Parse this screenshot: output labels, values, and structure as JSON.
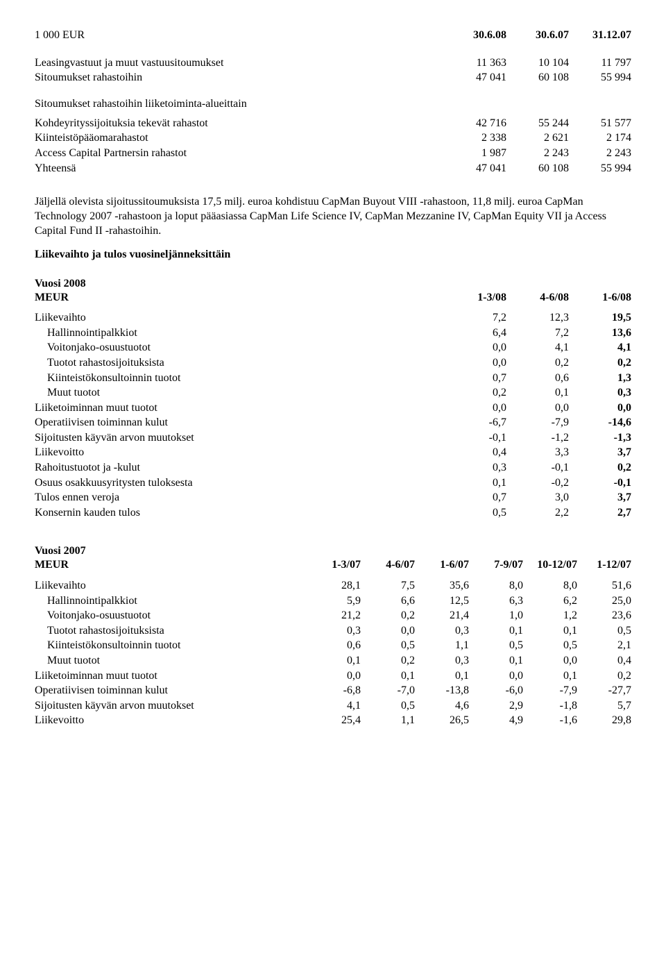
{
  "header": {
    "label": "1 000 EUR",
    "cols": [
      "30.6.08",
      "30.6.07",
      "31.12.07"
    ]
  },
  "leasing": {
    "rows": [
      {
        "label": "Leasingvastuut ja muut vastuusitoumukset",
        "vals": [
          "11 363",
          "10 104",
          "11 797"
        ]
      },
      {
        "label": "Sitoumukset rahastoihin",
        "vals": [
          "47 041",
          "60 108",
          "55 994"
        ]
      }
    ]
  },
  "sitoumukset": {
    "heading": "Sitoumukset rahastoihin liiketoiminta-alueittain",
    "rows": [
      {
        "label": "Kohdeyrityssijoituksia tekevät rahastot",
        "vals": [
          "42 716",
          "55 244",
          "51 577"
        ]
      },
      {
        "label": "Kiinteistöpääomarahastot",
        "vals": [
          "2 338",
          "2 621",
          "2 174"
        ]
      },
      {
        "label": "Access Capital Partnersin rahastot",
        "vals": [
          "1 987",
          "2 243",
          "2 243"
        ]
      },
      {
        "label": "Yhteensä",
        "vals": [
          "47 041",
          "60 108",
          "55 994"
        ]
      }
    ]
  },
  "paragraph": "Jäljellä olevista sijoitussitoumuksista 17,5 milj. euroa kohdistuu CapMan Buyout VIII -rahastoon, 11,8 milj. euroa CapMan Technology 2007 -rahastoon ja loput pääasiassa CapMan Life Science IV, CapMan Mezzanine IV, CapMan Equity VII ja Access Capital Fund II -rahastoihin.",
  "quarterly": {
    "title": "Liikevaihto ja tulos vuosineljänneksittäin"
  },
  "y2008": {
    "title": "Vuosi 2008",
    "header_label": "MEUR",
    "cols": [
      "1-3/08",
      "4-6/08",
      "1-6/08"
    ],
    "rows": [
      {
        "label": "Liikevaihto",
        "indent": false,
        "bold3": true,
        "vals": [
          "7,2",
          "12,3",
          "19,5"
        ]
      },
      {
        "label": "Hallinnointipalkkiot",
        "indent": true,
        "bold3": true,
        "vals": [
          "6,4",
          "7,2",
          "13,6"
        ]
      },
      {
        "label": "Voitonjako-osuustuotot",
        "indent": true,
        "bold3": true,
        "vals": [
          "0,0",
          "4,1",
          "4,1"
        ]
      },
      {
        "label": "Tuotot rahastosijoituksista",
        "indent": true,
        "bold3": true,
        "vals": [
          "0,0",
          "0,2",
          "0,2"
        ]
      },
      {
        "label": "Kiinteistökonsultoinnin tuotot",
        "indent": true,
        "bold3": true,
        "vals": [
          "0,7",
          "0,6",
          "1,3"
        ]
      },
      {
        "label": "Muut tuotot",
        "indent": true,
        "bold3": true,
        "vals": [
          "0,2",
          "0,1",
          "0,3"
        ]
      },
      {
        "label": "Liiketoiminnan muut tuotot",
        "indent": false,
        "bold3": true,
        "vals": [
          "0,0",
          "0,0",
          "0,0"
        ]
      },
      {
        "label": "Operatiivisen toiminnan kulut",
        "indent": false,
        "bold3": true,
        "vals": [
          "-6,7",
          "-7,9",
          "-14,6"
        ]
      },
      {
        "label": "Sijoitusten käyvän arvon muutokset",
        "indent": false,
        "bold3": true,
        "vals": [
          "-0,1",
          "-1,2",
          "-1,3"
        ]
      },
      {
        "label": "Liikevoitto",
        "indent": false,
        "bold3": true,
        "vals": [
          "0,4",
          "3,3",
          "3,7"
        ]
      },
      {
        "label": "Rahoitustuotot ja -kulut",
        "indent": false,
        "bold3": true,
        "vals": [
          "0,3",
          "-0,1",
          "0,2"
        ]
      },
      {
        "label": "Osuus osakkuusyritysten tuloksesta",
        "indent": false,
        "bold3": true,
        "vals": [
          "0,1",
          "-0,2",
          "-0,1"
        ]
      },
      {
        "label": "Tulos ennen veroja",
        "indent": false,
        "bold3": true,
        "vals": [
          "0,7",
          "3,0",
          "3,7"
        ]
      },
      {
        "label": "Konsernin kauden tulos",
        "indent": false,
        "bold3": true,
        "vals": [
          "0,5",
          "2,2",
          "2,7"
        ]
      }
    ]
  },
  "y2007": {
    "title": "Vuosi 2007",
    "header_label": "MEUR",
    "cols": [
      "1-3/07",
      "4-6/07",
      "1-6/07",
      "7-9/07",
      "10-12/07",
      "1-12/07"
    ],
    "rows": [
      {
        "label": "Liikevaihto",
        "indent": false,
        "vals": [
          "28,1",
          "7,5",
          "35,6",
          "8,0",
          "8,0",
          "51,6"
        ]
      },
      {
        "label": "Hallinnointipalkkiot",
        "indent": true,
        "vals": [
          "5,9",
          "6,6",
          "12,5",
          "6,3",
          "6,2",
          "25,0"
        ]
      },
      {
        "label": "Voitonjako-osuustuotot",
        "indent": true,
        "vals": [
          "21,2",
          "0,2",
          "21,4",
          "1,0",
          "1,2",
          "23,6"
        ]
      },
      {
        "label": "Tuotot rahastosijoituksista",
        "indent": true,
        "vals": [
          "0,3",
          "0,0",
          "0,3",
          "0,1",
          "0,1",
          "0,5"
        ]
      },
      {
        "label": "Kiinteistökonsultoinnin tuotot",
        "indent": true,
        "vals": [
          "0,6",
          "0,5",
          "1,1",
          "0,5",
          "0,5",
          "2,1"
        ]
      },
      {
        "label": "Muut tuotot",
        "indent": true,
        "vals": [
          "0,1",
          "0,2",
          "0,3",
          "0,1",
          "0,0",
          "0,4"
        ]
      },
      {
        "label": "Liiketoiminnan muut tuotot",
        "indent": false,
        "vals": [
          "0,0",
          "0,1",
          "0,1",
          "0,0",
          "0,1",
          "0,2"
        ]
      },
      {
        "label": "Operatiivisen toiminnan kulut",
        "indent": false,
        "vals": [
          "-6,8",
          "-7,0",
          "-13,8",
          "-6,0",
          "-7,9",
          "-27,7"
        ]
      },
      {
        "label": "Sijoitusten käyvän arvon muutokset",
        "indent": false,
        "vals": [
          "4,1",
          "0,5",
          "4,6",
          "2,9",
          "-1,8",
          "5,7"
        ]
      },
      {
        "label": "Liikevoitto",
        "indent": false,
        "vals": [
          "25,4",
          "1,1",
          "26,5",
          "4,9",
          "-1,6",
          "29,8"
        ]
      }
    ]
  }
}
